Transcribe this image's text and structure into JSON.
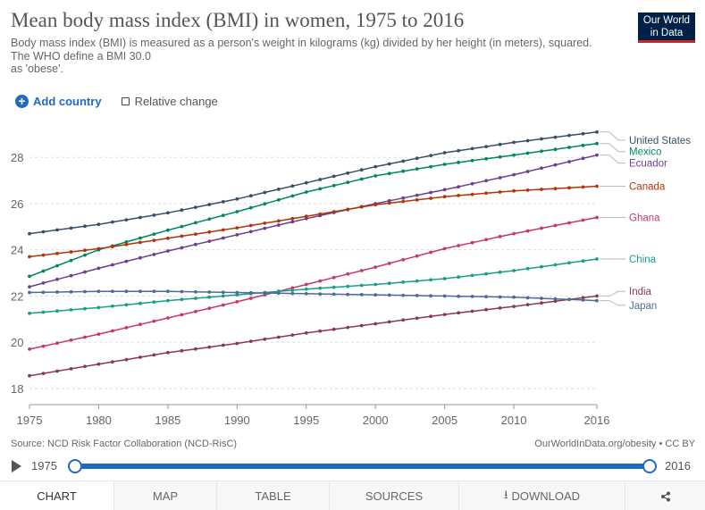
{
  "header": {
    "title": "Mean body mass index (BMI) in women, 1975 to 2016",
    "subtitle_lines": [
      "Body mass index (BMI) is measured as a person's weight in kilograms (kg) divided by her height (in meters), squared.",
      "The WHO define a BMI 30.0",
      "as 'obese'."
    ],
    "logo_line1": "Our World",
    "logo_line2": "in Data"
  },
  "controls": {
    "add_country": "Add country",
    "relative_change": "Relative change"
  },
  "chart_data": {
    "type": "line",
    "xlim": [
      1975,
      2016
    ],
    "ylim": [
      17.3,
      29.4
    ],
    "x_ticks": [
      1975,
      1980,
      1985,
      1990,
      1995,
      2000,
      2005,
      2010,
      2016
    ],
    "x_tick_labels": [
      "1975",
      "1980",
      "1985",
      "1990",
      "1995",
      "2000",
      "2005",
      "2010",
      "2016"
    ],
    "y_ticks": [
      18,
      20,
      22,
      24,
      26,
      28
    ],
    "y_tick_labels": [
      "18",
      "20",
      "22",
      "24",
      "26",
      "28"
    ],
    "grid": "horizontal-dashed",
    "legend": "right-end-labels",
    "series": [
      {
        "name": "United States",
        "color": "#3c4e66",
        "label_y": 28.75,
        "keys": [
          [
            1975,
            24.7
          ],
          [
            1980,
            25.1
          ],
          [
            1985,
            25.6
          ],
          [
            1990,
            26.2
          ],
          [
            1995,
            26.9
          ],
          [
            2000,
            27.6
          ],
          [
            2005,
            28.2
          ],
          [
            2010,
            28.65
          ],
          [
            2016,
            29.1
          ]
        ]
      },
      {
        "name": "Mexico",
        "color": "#00875e",
        "label_y": 28.25,
        "keys": [
          [
            1975,
            22.85
          ],
          [
            1980,
            24.0
          ],
          [
            1985,
            24.85
          ],
          [
            1990,
            25.65
          ],
          [
            1995,
            26.5
          ],
          [
            2000,
            27.2
          ],
          [
            2005,
            27.7
          ],
          [
            2010,
            28.1
          ],
          [
            2016,
            28.6
          ]
        ]
      },
      {
        "name": "Ecuador",
        "color": "#6d3e91",
        "label_y": 27.75,
        "keys": [
          [
            1975,
            22.4
          ],
          [
            1980,
            23.2
          ],
          [
            1985,
            23.95
          ],
          [
            1990,
            24.65
          ],
          [
            1995,
            25.35
          ],
          [
            2000,
            26.0
          ],
          [
            2005,
            26.6
          ],
          [
            2010,
            27.25
          ],
          [
            2016,
            28.1
          ]
        ]
      },
      {
        "name": "Canada",
        "color": "#b13507",
        "label_y": 26.75,
        "keys": [
          [
            1975,
            23.7
          ],
          [
            1980,
            24.05
          ],
          [
            1985,
            24.5
          ],
          [
            1990,
            24.95
          ],
          [
            1995,
            25.45
          ],
          [
            2000,
            25.95
          ],
          [
            2005,
            26.3
          ],
          [
            2010,
            26.55
          ],
          [
            2016,
            26.75
          ]
        ]
      },
      {
        "name": "Ghana",
        "color": "#c8366d",
        "label_y": 25.4,
        "keys": [
          [
            1975,
            19.7
          ],
          [
            1980,
            20.35
          ],
          [
            1985,
            21.05
          ],
          [
            1990,
            21.75
          ],
          [
            1995,
            22.5
          ],
          [
            2000,
            23.25
          ],
          [
            2005,
            24.05
          ],
          [
            2010,
            24.7
          ],
          [
            2016,
            25.4
          ]
        ]
      },
      {
        "name": "China",
        "color": "#18A085",
        "label_y": 23.6,
        "keys": [
          [
            1975,
            21.25
          ],
          [
            1980,
            21.5
          ],
          [
            1985,
            21.8
          ],
          [
            1990,
            22.05
          ],
          [
            1995,
            22.3
          ],
          [
            2000,
            22.5
          ],
          [
            2005,
            22.75
          ],
          [
            2010,
            23.1
          ],
          [
            2016,
            23.6
          ]
        ]
      },
      {
        "name": "India",
        "color": "#8b3a4c",
        "label_y": 22.2,
        "keys": [
          [
            1975,
            18.55
          ],
          [
            1980,
            19.05
          ],
          [
            1985,
            19.55
          ],
          [
            1990,
            19.95
          ],
          [
            1995,
            20.4
          ],
          [
            2000,
            20.8
          ],
          [
            2005,
            21.2
          ],
          [
            2010,
            21.55
          ],
          [
            2016,
            22.0
          ]
        ]
      },
      {
        "name": "Japan",
        "color": "#4c6a9c",
        "label_y": 21.6,
        "keys": [
          [
            1975,
            22.15
          ],
          [
            1980,
            22.2
          ],
          [
            1985,
            22.2
          ],
          [
            1990,
            22.15
          ],
          [
            1995,
            22.1
          ],
          [
            2000,
            22.05
          ],
          [
            2005,
            22.0
          ],
          [
            2010,
            21.95
          ],
          [
            2016,
            21.8
          ]
        ]
      }
    ]
  },
  "footer": {
    "source": "Source: NCD Risk Factor Collaboration (NCD-RisC)",
    "license": "OurWorldInData.org/obesity • CC BY"
  },
  "timeline": {
    "start_label": "1975",
    "end_label": "2016",
    "start_year": 1975,
    "end_year": 2016
  },
  "tabs": [
    {
      "label": "CHART",
      "active": true
    },
    {
      "label": "MAP",
      "active": false
    },
    {
      "label": "TABLE",
      "active": false
    },
    {
      "label": "SOURCES",
      "active": false
    },
    {
      "label": "DOWNLOAD",
      "active": false
    },
    {
      "label": "",
      "active": false
    }
  ],
  "icons": {
    "download": "download-icon",
    "share": "share-icon",
    "play": "play-icon",
    "add": "plus-icon"
  }
}
